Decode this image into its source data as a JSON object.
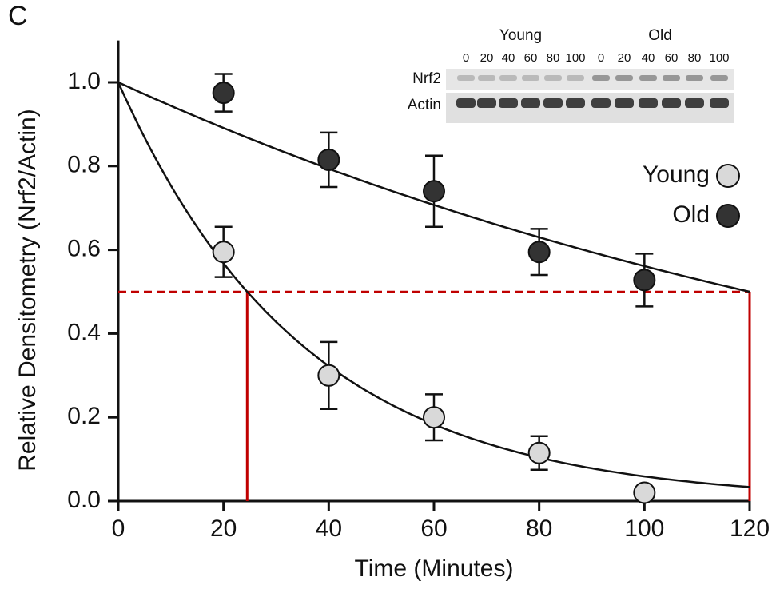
{
  "chart_data": {
    "type": "scatter",
    "panel_label": "C",
    "x_label": "Time (Minutes)",
    "y_label": "Relative Densitometry (Nrf2/Actin)",
    "x": [
      20,
      40,
      60,
      80,
      100
    ],
    "series": [
      {
        "name": "Young",
        "color": "#d9d9d9",
        "values": [
          0.595,
          0.3,
          0.2,
          0.115,
          0.02
        ],
        "errors": [
          0.06,
          0.08,
          0.055,
          0.04,
          0
        ],
        "half_life": 24.5
      },
      {
        "name": "Old",
        "color": "#333333",
        "values": [
          0.975,
          0.815,
          0.74,
          0.595,
          0.528
        ],
        "errors": [
          0.045,
          0.065,
          0.085,
          0.055,
          0.063
        ],
        "half_life": 120
      }
    ],
    "half_level": 0.5,
    "fit_start": 1,
    "xlim": [
      0,
      120
    ],
    "ylim": [
      0,
      1.1
    ],
    "xticks": [
      0,
      20,
      40,
      60,
      80,
      100,
      120
    ],
    "yticks": [
      {
        "value": 0,
        "label": "0.0"
      },
      0.2,
      0.4,
      0.6,
      0.8,
      {
        "value": 1,
        "label": "1.0"
      }
    ],
    "inset": {
      "groups": [
        {
          "name": "Young",
          "lanes": [
            0,
            20,
            40,
            60,
            80,
            100
          ]
        },
        {
          "name": "Old",
          "lanes": [
            0,
            20,
            40,
            60,
            80,
            100
          ]
        }
      ],
      "rows": [
        "Nrf2",
        "Actin"
      ]
    }
  }
}
